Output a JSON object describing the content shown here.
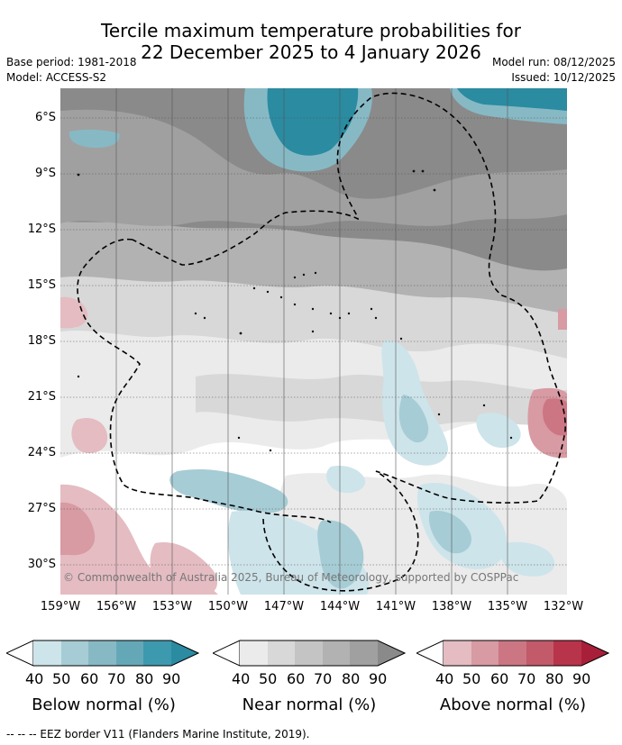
{
  "header": {
    "title_line1": "Tercile maximum temperature probabilities for",
    "title_line2": "22 December 2025 to 4 January 2026",
    "base_period": "Base period: 1981-2018",
    "model": "Model: ACCESS-S2",
    "model_run": "Model run: 08/12/2025",
    "issued": "Issued: 10/12/2025"
  },
  "map": {
    "lat_labels": [
      "6°S",
      "9°S",
      "12°S",
      "15°S",
      "18°S",
      "21°S",
      "24°S",
      "27°S",
      "30°S"
    ],
    "lon_labels": [
      "159°W",
      "156°W",
      "153°W",
      "150°W",
      "147°W",
      "144°W",
      "141°W",
      "138°W",
      "135°W",
      "132°W"
    ],
    "copyright": "© Commonwealth of Australia 2025, Bureau of Meteorology, supported by COSPPac"
  },
  "colors": {
    "below": [
      "#cde4ea",
      "#a6ccd5",
      "#87b9c5",
      "#64a8b8",
      "#3d9aae",
      "#2a8ba1"
    ],
    "near": [
      "#ebebeb",
      "#d8d8d8",
      "#c4c4c4",
      "#b2b2b2",
      "#a0a0a0",
      "#8a8a8a"
    ],
    "above": [
      "#e4bcc2",
      "#d89aa3",
      "#cc7683",
      "#c25a69",
      "#b8344a",
      "#a81f39"
    ]
  },
  "legend": {
    "ticks": [
      "40",
      "50",
      "60",
      "70",
      "80",
      "90"
    ],
    "below_label": "Below normal (%)",
    "near_label": "Near normal (%)",
    "above_label": "Above normal (%)"
  },
  "footer": {
    "eez_note": "-- -- -- EEZ border V11 (Flanders Marine Institute, 2019)."
  }
}
